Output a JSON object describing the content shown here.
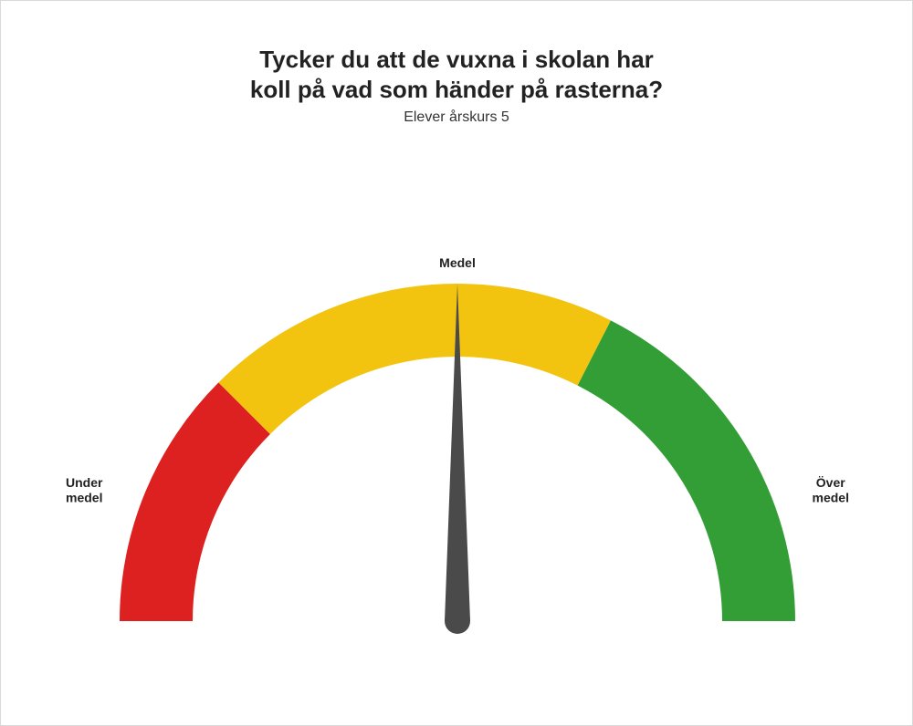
{
  "title_line1": "Tycker du att de vuxna i skolan har",
  "title_line2": "koll på vad som händer på rasterna?",
  "subtitle": "Elever årskurs 5",
  "gauge": {
    "type": "gauge",
    "min": 0,
    "max": 100,
    "value": 50,
    "segments": [
      {
        "from": 0,
        "to": 25,
        "color": "#dd2120"
      },
      {
        "from": 25,
        "to": 65,
        "color": "#f3c40f"
      },
      {
        "from": 65,
        "to": 100,
        "color": "#339e36"
      }
    ],
    "outer_radius": 370,
    "inner_radius": 290,
    "needle_color": "#4a4a4a",
    "needle_length": 370,
    "background_color": "#ffffff",
    "labels": {
      "left_line1": "Under",
      "left_line2": "medel",
      "top": "Medel",
      "right_line1": "Över",
      "right_line2": "medel"
    },
    "label_fontsize": 14,
    "label_fontweight": 700,
    "title_fontsize": 26,
    "subtitle_fontsize": 16
  }
}
